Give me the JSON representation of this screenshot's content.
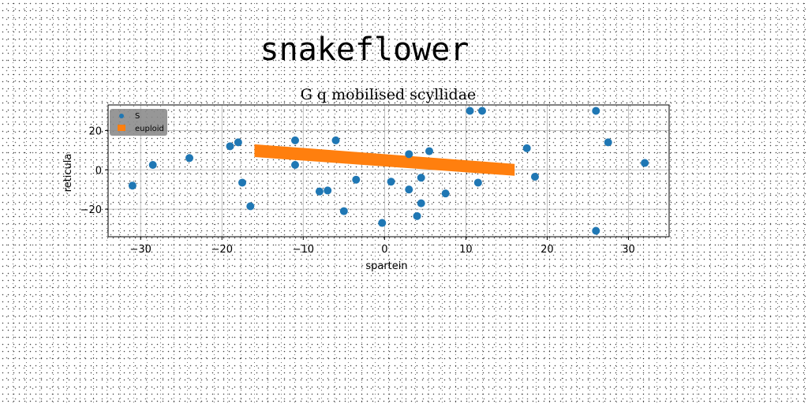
{
  "suptitle": "snakeflower",
  "chart_data": {
    "type": "scatter",
    "title": "G q mobilised scyllidae",
    "xlabel": "spartein",
    "ylabel": "reticula",
    "xlim": [
      -34,
      35
    ],
    "ylim": [
      -34,
      33
    ],
    "xticks": [
      -30,
      -20,
      -10,
      0,
      10,
      20,
      30
    ],
    "yticks": [
      -20,
      0,
      20
    ],
    "xtick_labels": [
      "−30",
      "−20",
      "−10",
      "0",
      "10",
      "20",
      "30"
    ],
    "ytick_labels": [
      "−20",
      "0",
      "20"
    ],
    "grid": true,
    "legend": {
      "placement": "top-left",
      "entries": [
        "S",
        "euploid"
      ]
    },
    "series": [
      {
        "name": "S",
        "kind": "scatter",
        "color": "#1f77b4",
        "points": [
          [
            -31,
            -8
          ],
          [
            -28.5,
            2.5
          ],
          [
            -24,
            6
          ],
          [
            -19,
            12
          ],
          [
            -18,
            14
          ],
          [
            -17.5,
            -6.5
          ],
          [
            -16.5,
            -18.5
          ],
          [
            -11,
            2.5
          ],
          [
            -11,
            15
          ],
          [
            -8,
            -11
          ],
          [
            -7,
            -10.5
          ],
          [
            -6,
            15
          ],
          [
            -5,
            -21
          ],
          [
            -3.5,
            -5
          ],
          [
            -0.3,
            -27
          ],
          [
            0.8,
            -6
          ],
          [
            3,
            8
          ],
          [
            3,
            -10
          ],
          [
            4,
            -23.5
          ],
          [
            4.5,
            -4
          ],
          [
            4.5,
            -17
          ],
          [
            5.5,
            9.5
          ],
          [
            7.5,
            -12
          ],
          [
            10.5,
            30
          ],
          [
            11.5,
            -6.5
          ],
          [
            12,
            30
          ],
          [
            17.5,
            11
          ],
          [
            18.5,
            -3.5
          ],
          [
            26,
            30
          ],
          [
            26,
            -31
          ],
          [
            27.5,
            14
          ],
          [
            32,
            3.5
          ]
        ]
      },
      {
        "name": "euploid",
        "kind": "band",
        "color": "#ff7f0e",
        "x": [
          -16,
          16
        ],
        "upper": [
          13,
          3
        ],
        "lower": [
          6.5,
          -3
        ]
      }
    ]
  }
}
